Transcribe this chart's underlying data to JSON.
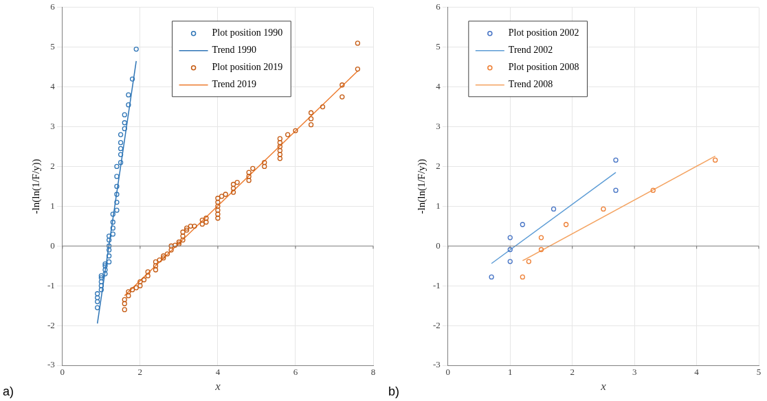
{
  "chart_data": [
    {
      "type": "scatter",
      "xlabel": "x",
      "ylabel": "-ln(ln(1/F/y))",
      "xlim": [
        0,
        8
      ],
      "ylim": [
        -3,
        6
      ],
      "xticks": [
        0,
        2,
        4,
        6,
        8
      ],
      "yticks": [
        -3,
        -2,
        -1,
        0,
        1,
        2,
        3,
        4,
        5,
        6
      ],
      "grid": true,
      "legend": "top",
      "marker": "circle",
      "annotations": [
        "a)"
      ],
      "series": [
        {
          "name": "Plot position 1990",
          "color": "#2e75b6",
          "x": [
            0.9,
            0.9,
            0.9,
            0.9,
            1.0,
            1.0,
            1.0,
            1.0,
            1.0,
            1.1,
            1.1,
            1.1,
            1.1,
            1.2,
            1.2,
            1.2,
            1.2,
            1.2,
            1.2,
            1.3,
            1.3,
            1.3,
            1.3,
            1.4,
            1.4,
            1.4,
            1.4,
            1.4,
            1.4,
            1.5,
            1.5,
            1.5,
            1.5,
            1.5,
            1.6,
            1.6,
            1.6,
            1.7,
            1.7,
            1.8,
            1.9
          ],
          "values": [
            -1.55,
            -1.4,
            -1.3,
            -1.2,
            -1.1,
            -1.0,
            -0.9,
            -0.8,
            -0.75,
            -0.7,
            -0.6,
            -0.5,
            -0.45,
            -0.4,
            -0.25,
            -0.1,
            0.0,
            0.15,
            0.25,
            0.3,
            0.45,
            0.6,
            0.8,
            0.9,
            1.1,
            1.3,
            1.5,
            1.75,
            2.0,
            2.1,
            2.3,
            2.45,
            2.6,
            2.8,
            2.95,
            3.1,
            3.3,
            3.55,
            3.8,
            4.2,
            4.95
          ]
        },
        {
          "name": "Trend 1990",
          "type": "line",
          "marker": "none",
          "color": "#2e75b6",
          "x": [
            0.9,
            1.9
          ],
          "values": [
            -1.95,
            4.65
          ]
        },
        {
          "name": "Plot position 2019",
          "color": "#c55a11",
          "x": [
            1.6,
            1.6,
            1.6,
            1.7,
            1.7,
            1.8,
            1.9,
            2.0,
            2.0,
            2.1,
            2.2,
            2.2,
            2.4,
            2.4,
            2.4,
            2.5,
            2.6,
            2.6,
            2.7,
            2.8,
            2.8,
            2.9,
            3.0,
            3.0,
            3.1,
            3.1,
            3.1,
            3.2,
            3.2,
            3.3,
            3.4,
            3.6,
            3.6,
            3.7,
            3.7,
            4.0,
            4.0,
            4.0,
            4.0,
            4.0,
            4.0,
            4.1,
            4.2,
            4.4,
            4.4,
            4.4,
            4.5,
            4.8,
            4.8,
            4.8,
            4.9,
            5.2,
            5.2,
            5.6,
            5.6,
            5.6,
            5.6,
            5.6,
            5.6,
            5.8,
            6.0,
            6.4,
            6.4,
            6.4,
            6.7,
            7.2,
            7.2,
            7.6,
            7.6
          ],
          "values": [
            -1.6,
            -1.45,
            -1.35,
            -1.25,
            -1.15,
            -1.1,
            -1.05,
            -1.0,
            -0.9,
            -0.85,
            -0.75,
            -0.65,
            -0.6,
            -0.5,
            -0.4,
            -0.35,
            -0.3,
            -0.25,
            -0.2,
            -0.1,
            0.0,
            0.02,
            0.05,
            0.1,
            0.15,
            0.25,
            0.35,
            0.4,
            0.45,
            0.5,
            0.5,
            0.55,
            0.65,
            0.6,
            0.7,
            0.7,
            0.8,
            0.9,
            1.0,
            1.1,
            1.2,
            1.25,
            1.3,
            1.35,
            1.45,
            1.55,
            1.6,
            1.65,
            1.75,
            1.85,
            1.95,
            2.0,
            2.1,
            2.2,
            2.3,
            2.4,
            2.5,
            2.6,
            2.7,
            2.8,
            2.9,
            3.05,
            3.2,
            3.35,
            3.5,
            3.75,
            4.05,
            4.45,
            5.1
          ]
        },
        {
          "name": "Trend 2019",
          "type": "line",
          "marker": "none",
          "color": "#ed7d31",
          "x": [
            1.6,
            7.6
          ],
          "values": [
            -1.25,
            4.4
          ]
        }
      ]
    },
    {
      "type": "scatter",
      "xlabel": "x",
      "ylabel": "-ln(ln(1/F/y))",
      "xlim": [
        0,
        5
      ],
      "ylim": [
        -3,
        6
      ],
      "xticks": [
        0,
        1,
        2,
        3,
        4,
        5
      ],
      "yticks": [
        -3,
        -2,
        -1,
        0,
        1,
        2,
        3,
        4,
        5,
        6
      ],
      "grid": true,
      "legend": "top left",
      "marker": "circle",
      "annotations": [
        "b)"
      ],
      "series": [
        {
          "name": "Plot position 2002",
          "color": "#4472c4",
          "x": [
            0.7,
            1.0,
            1.0,
            1.0,
            1.2,
            1.7,
            2.7,
            2.7
          ],
          "values": [
            -0.78,
            -0.39,
            -0.09,
            0.21,
            0.54,
            0.93,
            1.4,
            2.16
          ]
        },
        {
          "name": "Trend 2002",
          "type": "line",
          "marker": "none",
          "color": "#5b9bd5",
          "x": [
            0.7,
            2.7
          ],
          "values": [
            -0.44,
            1.85
          ]
        },
        {
          "name": "Plot position 2008",
          "color": "#ed7d31",
          "x": [
            1.2,
            1.3,
            1.5,
            1.5,
            1.9,
            2.5,
            3.3,
            4.3
          ],
          "values": [
            -0.78,
            -0.39,
            -0.09,
            0.21,
            0.54,
            0.93,
            1.4,
            2.16
          ]
        },
        {
          "name": "Trend 2008",
          "type": "line",
          "marker": "none",
          "color": "#f4a361",
          "x": [
            1.2,
            4.3
          ],
          "values": [
            -0.37,
            2.26
          ]
        }
      ]
    }
  ]
}
